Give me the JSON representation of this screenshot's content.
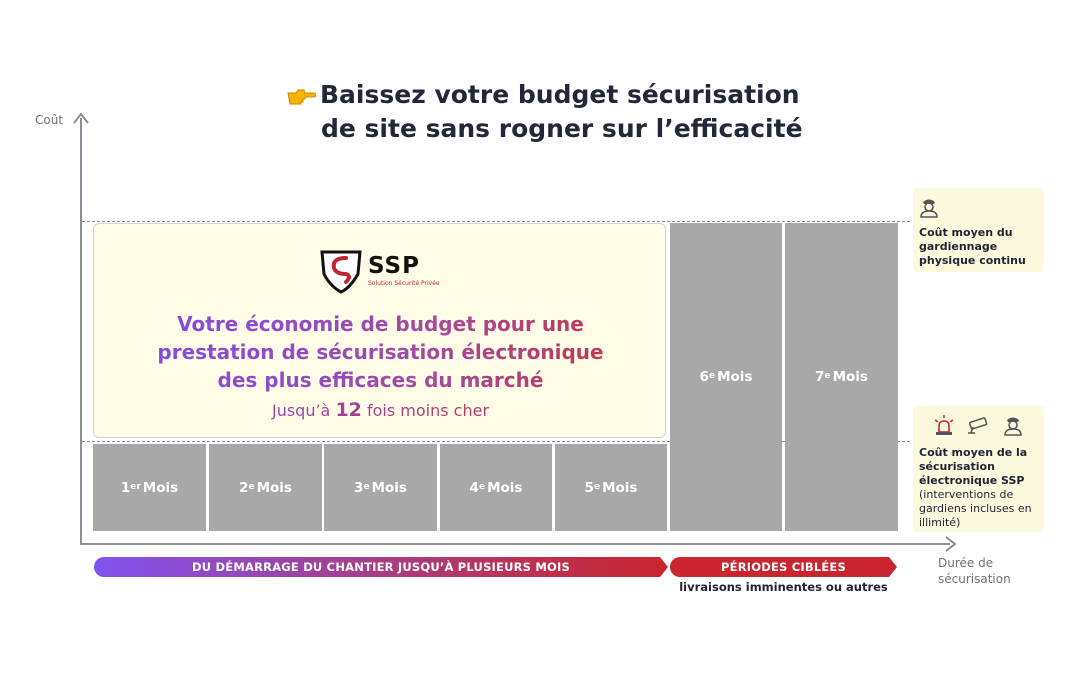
{
  "title": {
    "line1": "Baissez votre budget sécurisation",
    "line2": "de site sans rogner sur l’efficacité",
    "pointer_icon": "pointing-hand-icon"
  },
  "axes": {
    "y_label": "Coût",
    "x_label_line1": "Durée de",
    "x_label_line2": "sécurisation"
  },
  "months": [
    {
      "num": "1",
      "sup": "er",
      "word": "Mois"
    },
    {
      "num": "2",
      "sup": "e",
      "word": "Mois"
    },
    {
      "num": "3",
      "sup": "e",
      "word": "Mois"
    },
    {
      "num": "4",
      "sup": "e",
      "word": "Mois"
    },
    {
      "num": "5",
      "sup": "e",
      "word": "Mois"
    },
    {
      "num": "6",
      "sup": "e",
      "word": "Mois"
    },
    {
      "num": "7",
      "sup": "e",
      "word": "Mois"
    }
  ],
  "savings_box": {
    "logo_text": "SSP",
    "logo_tagline": "Solution Sécurité Privée",
    "headline_line1": "Votre économie de budget pour une",
    "headline_line2": "prestation de sécurisation électronique",
    "headline_line3": "des plus efficaces du marché",
    "sub_before": "Jusqu’à",
    "sub_number": "12",
    "sub_after": "fois moins cher",
    "colors": {
      "gradient_start": "#7b4cf1",
      "gradient_end": "#c8323b",
      "background": "#fffde8"
    }
  },
  "notes": {
    "top": {
      "icon": "security-guard-icon",
      "text": "Coût moyen du gardiennage physique continu"
    },
    "bottom": {
      "icons": [
        "alarm-siren-icon",
        "security-camera-icon",
        "security-guard-icon"
      ],
      "bold": "Coût moyen de la sécurisation électronique SSP",
      "regular": "(interventions de gardiens incluses en illimité)"
    }
  },
  "bands": {
    "first": "DU DÉMARRAGE DU CHANTIER JUSQU’À PLUSIEURS MOIS",
    "second": "PÉRIODES CIBLÉES",
    "second_sub": "livraisons imminentes ou autres",
    "colors": {
      "purple": "#8053f0",
      "red": "#c9242f"
    }
  },
  "colors": {
    "bar_gray": "#a8a8a8",
    "note_bg": "#fcf9df",
    "axis": "#8a8e96"
  }
}
